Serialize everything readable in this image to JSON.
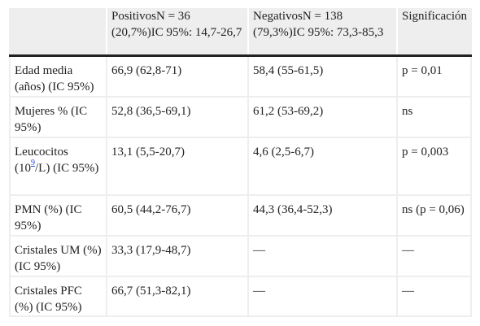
{
  "header": {
    "col1": "",
    "col2": "PositivosN = 36 (20,7%)IC 95%: 14,7-26,7",
    "col3": "NegativosN = 138 (79,3%)IC 95%: 73,3-85,3",
    "col4": "Significación"
  },
  "rows": [
    {
      "label": "Edad media (años) (IC 95%)",
      "positivos": "66,9 (62,8-71)",
      "negativos": "58,4 (55-61,5)",
      "significacion": "p = 0,01"
    },
    {
      "label": "Mujeres % (IC 95%)",
      "positivos": "52,8 (36,5-69,1)",
      "negativos": "61,2 (53-69,2)",
      "significacion": "ns"
    },
    {
      "label_pre": "Leucocitos (10",
      "label_sup": "9",
      "label_post": "/L) (IC 95%)",
      "positivos": "13,1 (5,5-20,7)",
      "negativos": "4,6 (2,5-6,7)",
      "significacion": "p = 0,003"
    },
    {
      "label": "PMN (%) (IC 95%)",
      "positivos": "60,5 (44,2-76,7)",
      "negativos": "44,3 (36,4-52,3)",
      "significacion": "ns (p = 0,06)"
    },
    {
      "label": "Cristales UM (%) (IC 95%)",
      "positivos": "33,3 (17,9-48,7)",
      "negativos": "—",
      "significacion": "—"
    },
    {
      "label": "Cristales PFC (%) (IC 95%)",
      "positivos": "66,7 (51,3-82,1)",
      "negativos": "—",
      "significacion": "—"
    }
  ]
}
